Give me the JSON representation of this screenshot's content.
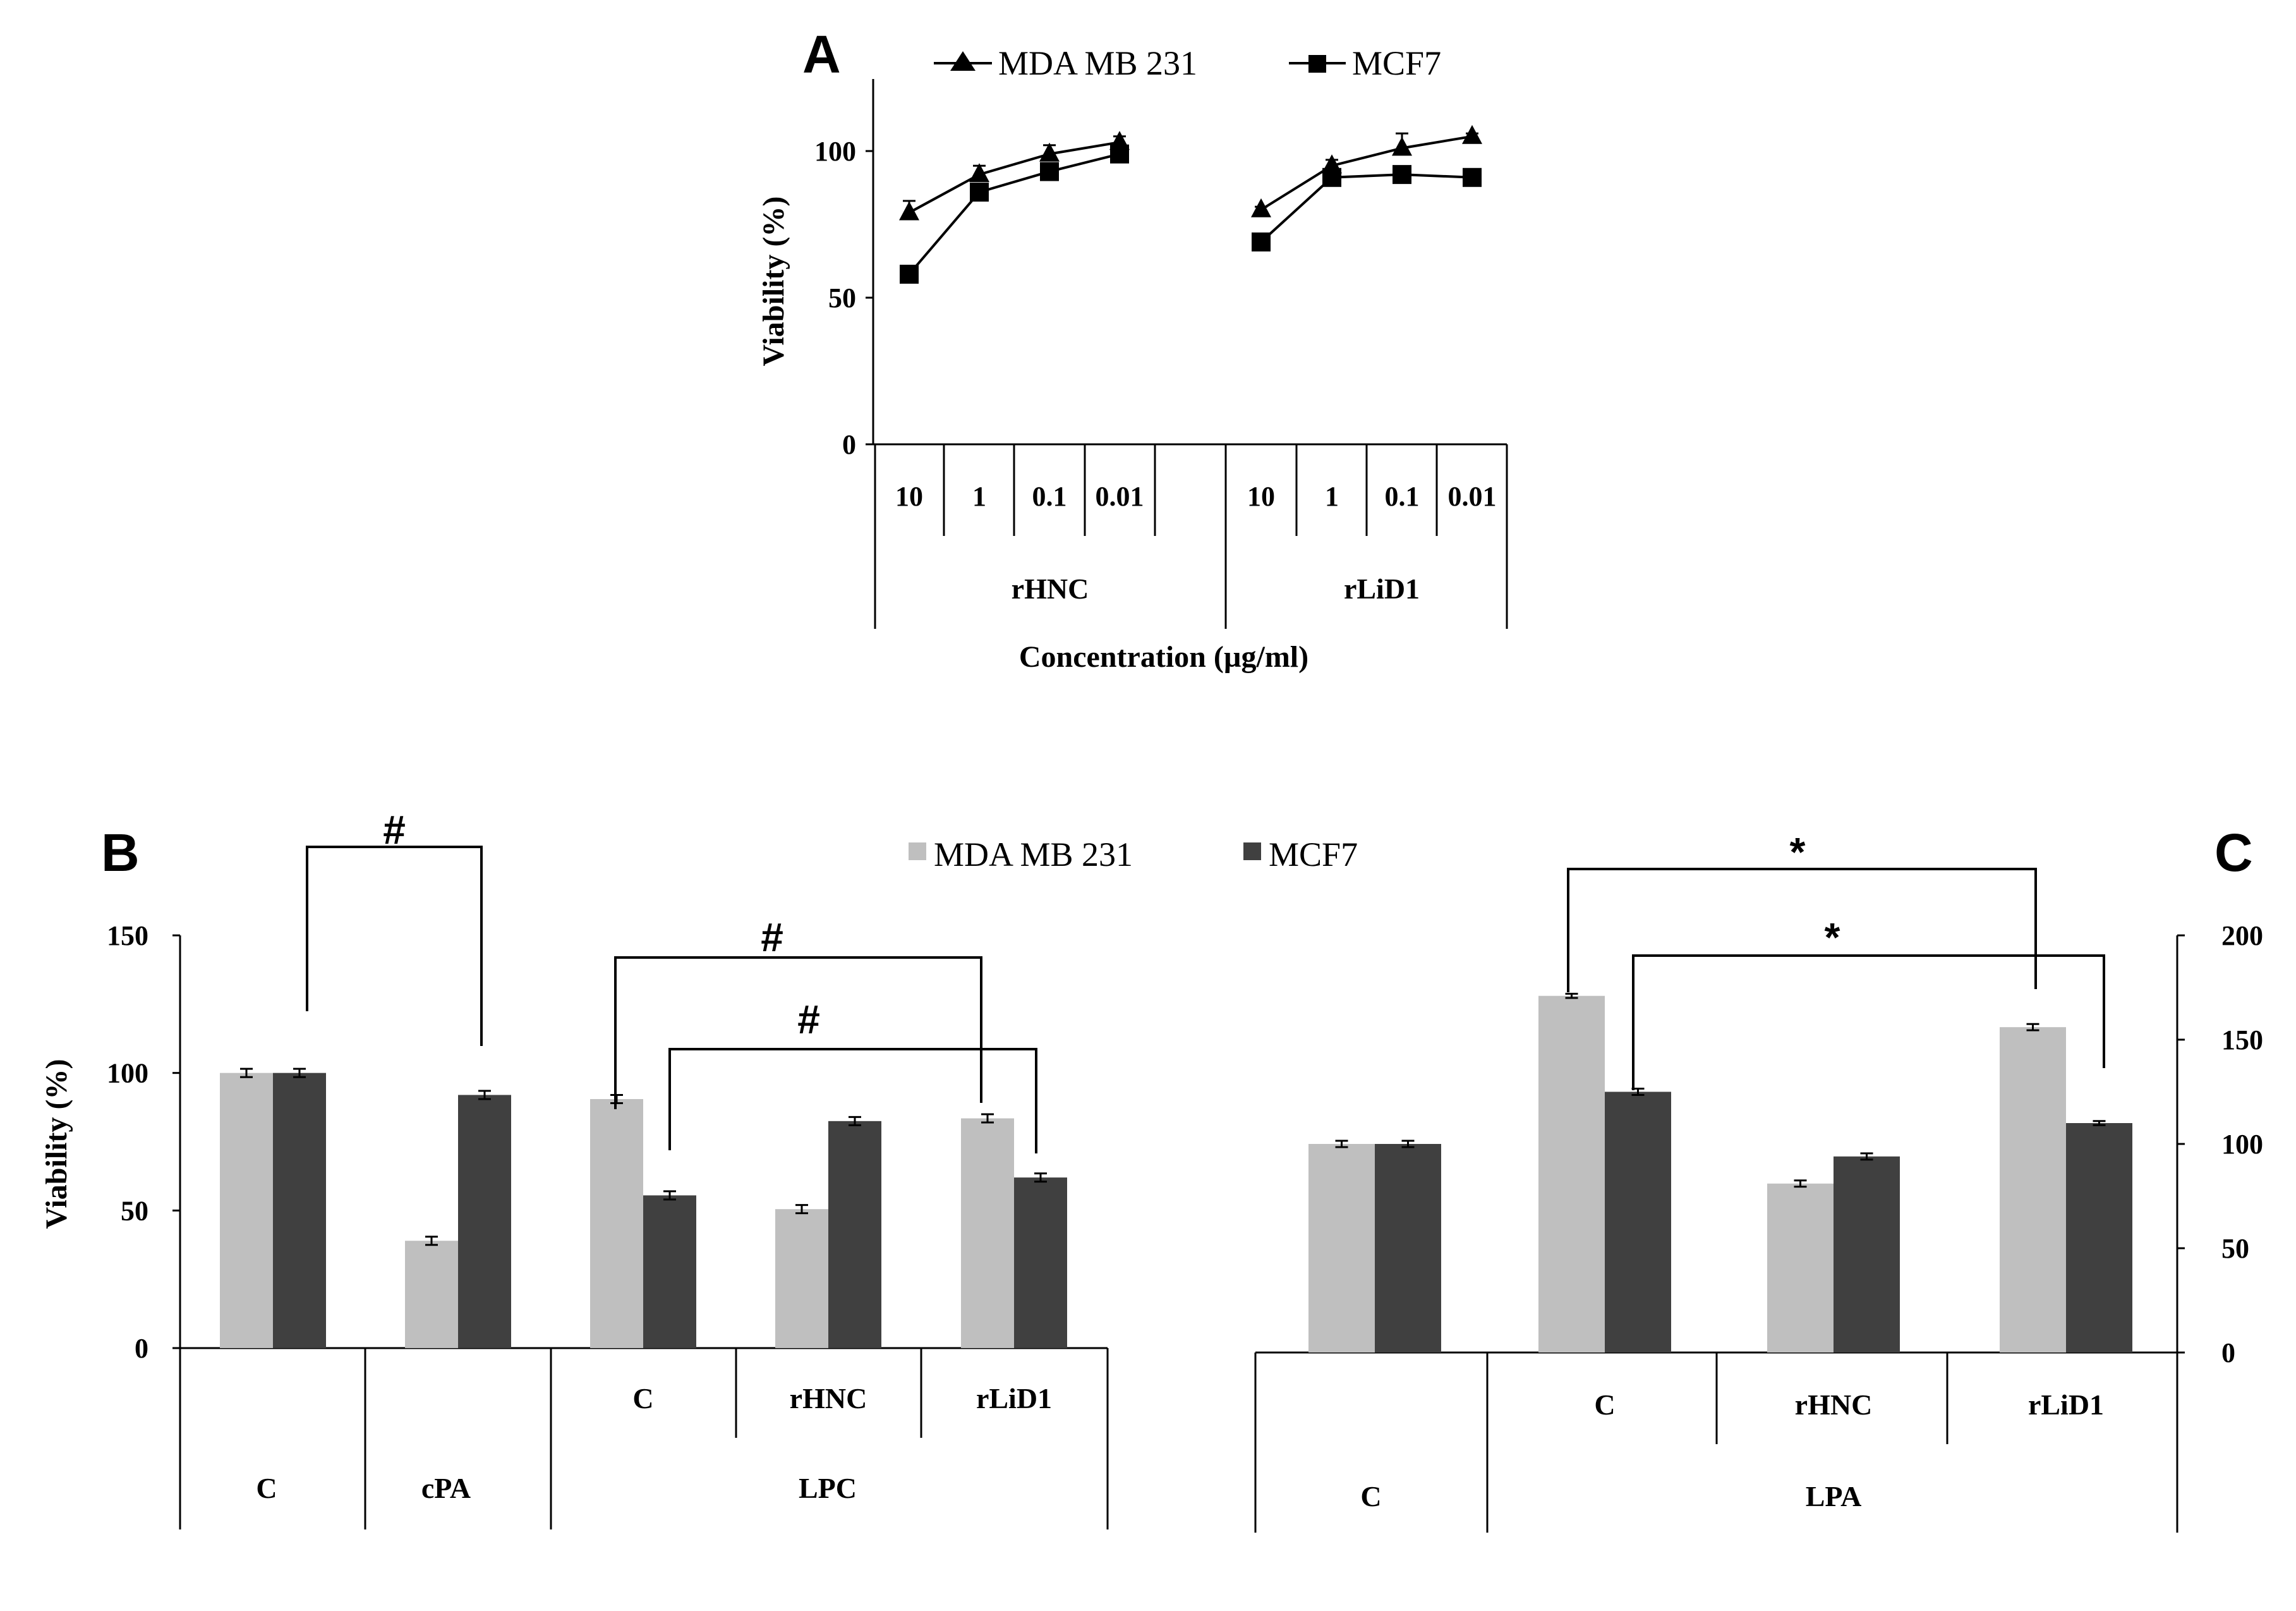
{
  "chart_data": [
    {
      "panel": "A",
      "type": "line",
      "ylabel": "Viability (%)",
      "xlabel": "Concentration (µg/ml)",
      "ylim": [
        0,
        125
      ],
      "yticks": [
        0,
        50,
        100
      ],
      "legend_position": "top",
      "groups": [
        {
          "label": "rHNC",
          "concentrations": [
            "10",
            "1",
            "0.1",
            "0.01"
          ]
        },
        {
          "label": "rLiD1",
          "concentrations": [
            "10",
            "1",
            "0.1",
            "0.01"
          ]
        }
      ],
      "series": [
        {
          "name": "MDA MB 231",
          "marker": "triangle",
          "values": [
            [
              79,
              92,
              99,
              103
            ],
            [
              80,
              95,
              101,
              105
            ]
          ],
          "errors": [
            [
              4,
              3,
              3,
              2
            ],
            [
              1,
              2,
              5,
              1
            ]
          ]
        },
        {
          "name": "MCF7",
          "marker": "square",
          "values": [
            [
              58,
              86,
              93,
              99
            ],
            [
              69,
              91,
              92,
              91
            ]
          ],
          "errors": [
            [
              1,
              2,
              2,
              1
            ],
            [
              1,
              2,
              2,
              1
            ]
          ]
        }
      ]
    },
    {
      "panel": "B",
      "type": "bar",
      "ylabel": "Viability (%)",
      "ylim": [
        0,
        150
      ],
      "yticks": [
        0,
        50,
        100,
        150
      ],
      "legend_position": "top-right",
      "series_names": [
        "MDA MB 231",
        "MCF7"
      ],
      "subcategories": [
        "",
        "",
        "C",
        "rHNC",
        "rLiD1"
      ],
      "categories": [
        "C",
        "cPA",
        "LPC"
      ],
      "groups": [
        {
          "values": [
            100,
            100
          ],
          "errors": [
            1.5,
            1.5
          ]
        },
        {
          "values": [
            39,
            92
          ],
          "errors": [
            1.5,
            1.5
          ]
        },
        {
          "values": [
            90.5,
            55.5
          ],
          "errors": [
            1.5,
            1.5
          ]
        },
        {
          "values": [
            50.5,
            82.5
          ],
          "errors": [
            1.5,
            1.5
          ]
        },
        {
          "values": [
            83.5,
            62
          ],
          "errors": [
            1.5,
            1.5
          ]
        }
      ],
      "annotations": [
        "#",
        "#",
        "#"
      ]
    },
    {
      "panel": "C",
      "type": "bar",
      "ylabel": "",
      "ylim": [
        0,
        200
      ],
      "yticks": [
        0,
        50,
        100,
        150,
        200
      ],
      "y_axis_side": "right",
      "series_names": [
        "MDA MB 231",
        "MCF7"
      ],
      "subcategories": [
        "",
        "C",
        "rHNC",
        "rLiD1"
      ],
      "categories": [
        "C",
        "LPA"
      ],
      "groups": [
        {
          "values": [
            100,
            100
          ],
          "errors": [
            1.5,
            1.5
          ]
        },
        {
          "values": [
            171,
            125
          ],
          "errors": [
            1,
            1.5
          ]
        },
        {
          "values": [
            81,
            94
          ],
          "errors": [
            1.5,
            1.5
          ]
        },
        {
          "values": [
            156,
            110
          ],
          "errors": [
            1.5,
            1
          ]
        }
      ],
      "annotations": [
        "*",
        "*"
      ]
    }
  ],
  "colors": {
    "mda": "#bfbfbf",
    "mcf7": "#404040",
    "ink": "#000000"
  }
}
